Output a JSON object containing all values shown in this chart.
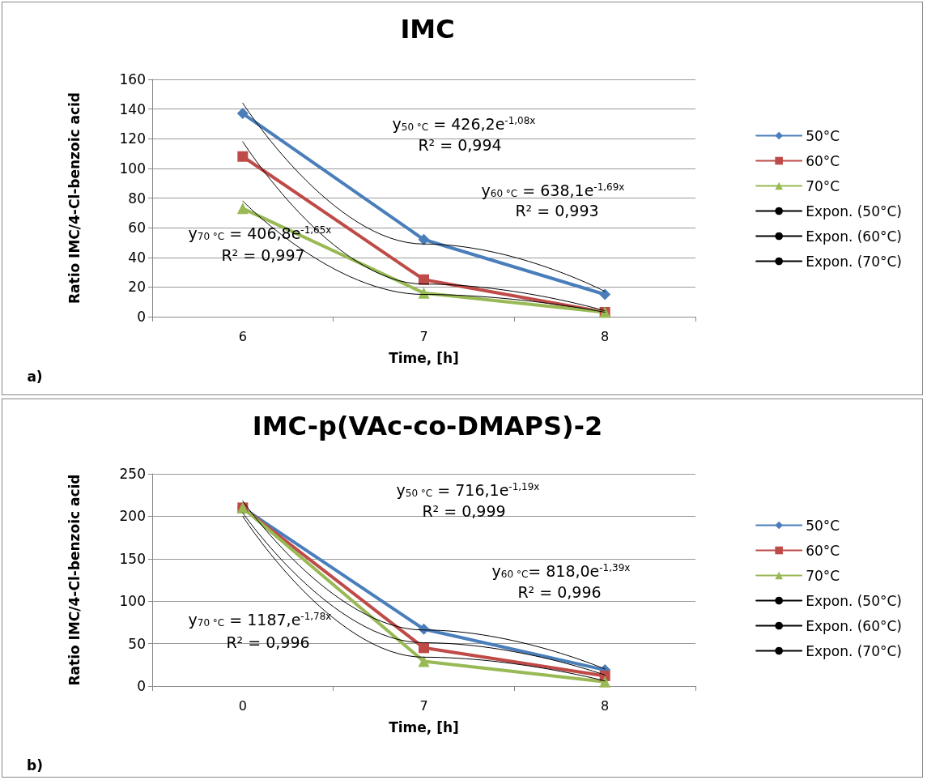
{
  "chart_data": [
    {
      "type": "line",
      "title": "IMC",
      "xlabel": "Time, [h]",
      "ylabel": "Ratio IMC/4-Cl-benzoic acid",
      "categories": [
        "6",
        "7",
        "8"
      ],
      "ylim": [
        0,
        160
      ],
      "yticks": [
        0,
        20,
        40,
        60,
        80,
        100,
        120,
        140,
        160
      ],
      "grid": "y",
      "legend": "right",
      "series": [
        {
          "name": "50°C",
          "color": "#4a7ebb",
          "marker": "diamond",
          "values": [
            137,
            52,
            15
          ]
        },
        {
          "name": "60°C",
          "color": "#be4b48",
          "marker": "square",
          "values": [
            108,
            25,
            3
          ]
        },
        {
          "name": "70°C",
          "color": "#98b954",
          "marker": "triangle",
          "values": [
            73,
            16,
            3
          ]
        },
        {
          "name": "Expon. (50°C)",
          "color": "#000000",
          "marker": "none",
          "values": [
            144,
            49,
            17
          ]
        },
        {
          "name": "Expon. (60°C)",
          "color": "#000000",
          "marker": "none",
          "values": [
            118,
            22,
            4
          ]
        },
        {
          "name": "Expon. (70°C)",
          "color": "#000000",
          "marker": "none",
          "values": [
            78,
            15,
            3
          ]
        }
      ],
      "annotations": [
        "y$_{50 °C}$ = 426,2e$^{-1,08x}$",
        "R² = 0,994",
        "y$_{60 °C}$ = 638,1e$^{-1,69x}$",
        "R² = 0,993",
        "y$_{70 °C}$ = 406,8e$^{-1,65x}$",
        "R² = 0,997",
        "a)"
      ]
    },
    {
      "type": "line",
      "title": "IMC-p(VAc-co-DMAPS)-2",
      "xlabel": "Time, [h]",
      "ylabel": "Ratio IMC/4-Cl-benzoic acid",
      "categories": [
        "0",
        "7",
        "8"
      ],
      "ylim": [
        0,
        250
      ],
      "yticks": [
        0,
        50,
        100,
        150,
        200,
        250
      ],
      "grid": "y",
      "legend": "right",
      "series": [
        {
          "name": "50°C",
          "color": "#4a7ebb",
          "marker": "diamond",
          "values": [
            210,
            67,
            19
          ]
        },
        {
          "name": "60°C",
          "color": "#be4b48",
          "marker": "square",
          "values": [
            210,
            45,
            12
          ]
        },
        {
          "name": "70°C",
          "color": "#98b954",
          "marker": "triangle",
          "values": [
            210,
            29,
            5
          ]
        },
        {
          "name": "Expon. (50°C)",
          "color": "#000000",
          "marker": "none",
          "values": [
            218,
            66,
            20
          ]
        },
        {
          "name": "Expon. (60°C)",
          "color": "#000000",
          "marker": "none",
          "values": [
            204,
            51,
            13
          ]
        },
        {
          "name": "Expon. (70°C)",
          "color": "#000000",
          "marker": "none",
          "values": [
            200,
            34,
            6
          ]
        }
      ],
      "annotations": [
        "y$_{50 °C}$ = 716,1e$^{-1,19x}$",
        "R² = 0,999",
        "y$_{60 °C}$= 818,0e$^{-1,39x}$",
        "R² = 0,996",
        "y$_{70 °C}$ = 1187,e$^{-1,78x}$",
        "R² = 0,996",
        "b)"
      ]
    }
  ]
}
